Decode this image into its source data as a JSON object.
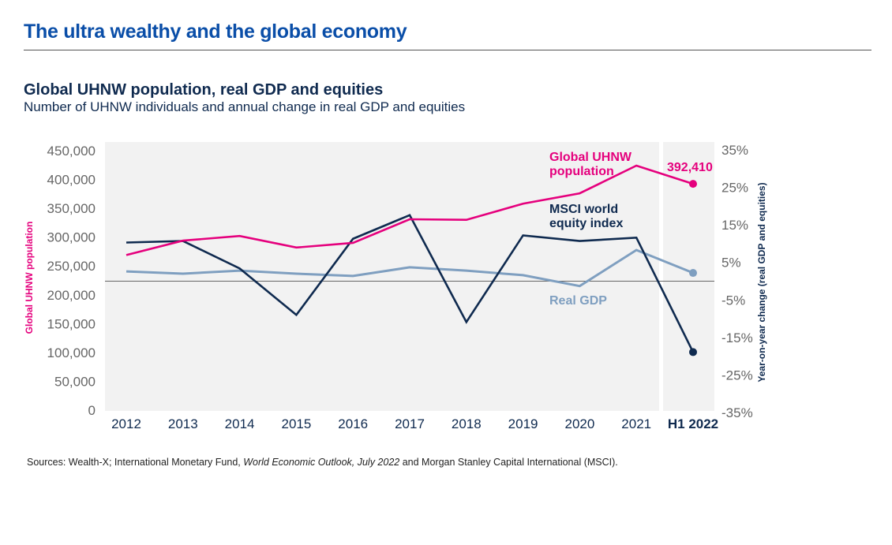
{
  "header": {
    "title": "The ultra wealthy and the global economy"
  },
  "chart_data": {
    "type": "line",
    "title": "Global UHNW population, real GDP and equities",
    "subtitle": "Number of UHNW individuals and annual change in real GDP and equities",
    "categories": [
      "2012",
      "2013",
      "2014",
      "2015",
      "2016",
      "2017",
      "2018",
      "2019",
      "2020",
      "2021",
      "H1 2022"
    ],
    "ylabel_left": "Global UHNW population",
    "ylabel_right": "Year-on-year change (real GDP and equities)",
    "ylim_left": [
      0,
      450000
    ],
    "yticks_left": [
      "0",
      "50,000",
      "100,000",
      "150,000",
      "200,000",
      "250,000",
      "300,000",
      "350,000",
      "400,000",
      "450,000"
    ],
    "ylim_right": [
      -35,
      35
    ],
    "yticks_right": [
      "-35%",
      "-25%",
      "-15%",
      "-5%",
      "5%",
      "15%",
      "25%",
      "35%"
    ],
    "grid": false,
    "series": [
      {
        "name": "Global UHNW population",
        "axis": "left",
        "color": "#e5007d",
        "values": [
          269000,
          294000,
          302000,
          282000,
          290000,
          331000,
          330000,
          358000,
          376000,
          424000,
          392410
        ],
        "end_label": "392,410"
      },
      {
        "name": "MSCI world equity index",
        "axis": "right",
        "color": "#0f2a4f",
        "values": [
          10.3,
          10.7,
          3.4,
          -9.0,
          11.3,
          17.6,
          -10.9,
          12.2,
          10.7,
          11.6,
          -18.9
        ]
      },
      {
        "name": "Real GDP",
        "axis": "right",
        "color": "#7f9fc0",
        "values": [
          2.6,
          2.0,
          2.8,
          2.0,
          1.4,
          3.7,
          2.8,
          1.6,
          -1.3,
          8.3,
          2.2
        ]
      }
    ],
    "series_labels": [
      [
        "Global UHNW",
        "population"
      ],
      [
        "MSCI world",
        "equity index"
      ],
      [
        "Real GDP"
      ]
    ]
  },
  "footer": {
    "sources_pre": "Sources: Wealth-X; International Monetary Fund, ",
    "sources_italic": "World Economic Outlook, July 2022",
    "sources_post": " and Morgan Stanley Capital International (MSCI)."
  }
}
